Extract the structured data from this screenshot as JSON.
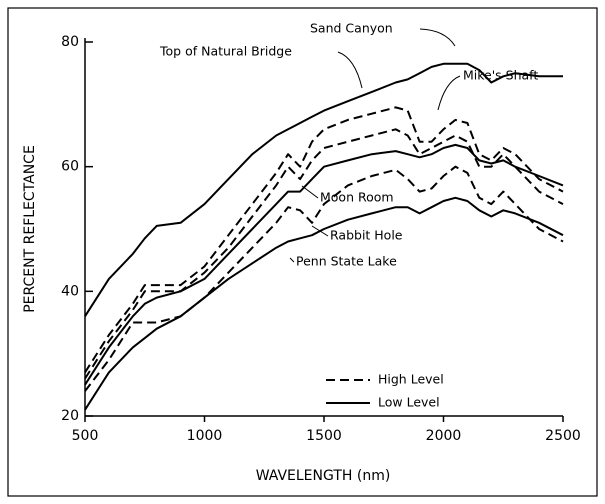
{
  "chart_data": {
    "type": "line",
    "xlabel": "WAVELENGTH (nm)",
    "ylabel": "PERCENT REFLECTANCE",
    "x": [
      500,
      600,
      700,
      750,
      800,
      900,
      1000,
      1100,
      1200,
      1300,
      1350,
      1400,
      1450,
      1500,
      1600,
      1700,
      1800,
      1850,
      1900,
      1950,
      2000,
      2050,
      2100,
      2150,
      2200,
      2250,
      2300,
      2400,
      2500
    ],
    "series": [
      {
        "name": "Sand Canyon",
        "color": "#000000",
        "dashed": false,
        "values": [
          36,
          42,
          46,
          48.5,
          50.5,
          51,
          54,
          58,
          62,
          65,
          66,
          67,
          68,
          69,
          70.5,
          72,
          73.5,
          74,
          75,
          76,
          76.5,
          76.5,
          76.5,
          75.5,
          73.5,
          74.5,
          75,
          74.5,
          74.5
        ]
      },
      {
        "name": "Top of Natural Bridge",
        "color": "#000000",
        "dashed": true,
        "values": [
          27,
          33,
          38,
          41,
          41,
          41,
          44,
          49,
          54,
          59,
          62,
          60,
          64,
          66,
          67.5,
          68.5,
          69.5,
          69,
          64,
          64,
          66,
          67.5,
          67,
          62,
          61,
          63,
          62,
          58,
          56
        ]
      },
      {
        "name": "Mike's Shaft",
        "color": "#000000",
        "dashed": true,
        "values": [
          26,
          32,
          37,
          40,
          40,
          40,
          43,
          47,
          52,
          57,
          60,
          58,
          61,
          63,
          64,
          65,
          66,
          65,
          62,
          63,
          64,
          65,
          64,
          60,
          60,
          62,
          60,
          56,
          54
        ]
      },
      {
        "name": "Moon Room",
        "color": "#000000",
        "dashed": false,
        "values": [
          25,
          31,
          36,
          38,
          39,
          40,
          42,
          46,
          50,
          54,
          56,
          56,
          58,
          60,
          61,
          62,
          62.5,
          62,
          61.5,
          62,
          63,
          63.5,
          63,
          61,
          60.5,
          61,
          60,
          58.5,
          57
        ]
      },
      {
        "name": "Rabbit Hole",
        "color": "#000000",
        "dashed": true,
        "values": [
          24,
          29,
          35,
          35,
          35,
          36,
          39,
          43,
          47,
          51,
          53.5,
          53,
          51,
          54,
          57,
          58.5,
          59.5,
          58,
          56,
          56.5,
          58.5,
          60,
          59,
          55,
          54,
          56,
          54,
          50,
          48
        ]
      },
      {
        "name": "Penn State Lake",
        "color": "#000000",
        "dashed": false,
        "values": [
          21,
          27,
          31,
          32.5,
          34,
          36,
          39,
          42,
          44.5,
          47,
          48,
          48.5,
          49,
          50,
          51.5,
          52.5,
          53.5,
          53.5,
          52.5,
          53.5,
          54.5,
          55,
          54.5,
          53,
          52,
          53,
          52.5,
          51,
          49
        ]
      }
    ],
    "legend": [
      {
        "label": "High Level",
        "dashed": true
      },
      {
        "label": "Low Level",
        "dashed": false
      }
    ],
    "xlim": [
      500,
      2500
    ],
    "xticks": [
      500,
      1000,
      1500,
      2000,
      2500
    ],
    "ylim": [
      20,
      80
    ],
    "yticks": [
      20,
      40,
      60,
      80
    ],
    "grid": false
  }
}
